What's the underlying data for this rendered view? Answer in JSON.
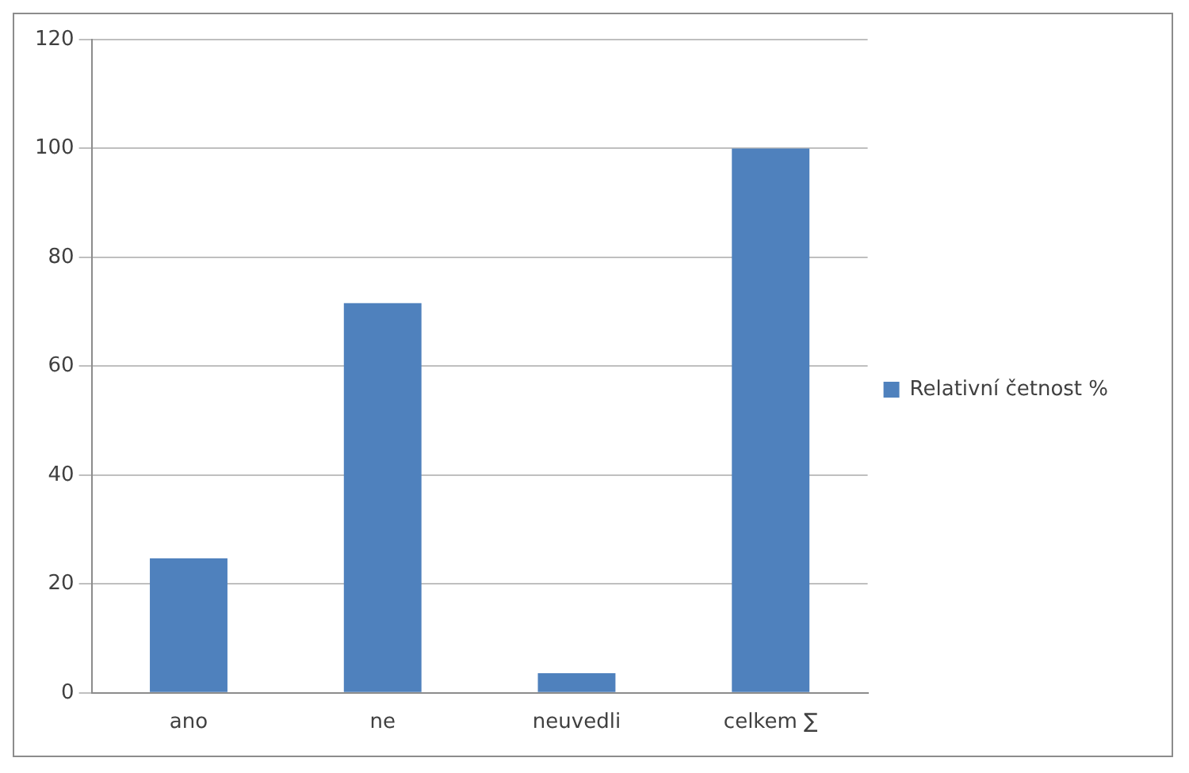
{
  "chart_data": {
    "type": "bar",
    "categories": [
      "ano",
      "ne",
      "neuvedli",
      "celkem ∑"
    ],
    "series": [
      {
        "name": "Relativní četnost %",
        "color": "#4f81bd",
        "values": [
          24.7,
          71.6,
          3.6,
          100
        ]
      }
    ],
    "ylim": [
      0,
      120
    ],
    "yticks": [
      0,
      20,
      40,
      60,
      80,
      100,
      120
    ],
    "grid": "y",
    "legend": "right"
  }
}
